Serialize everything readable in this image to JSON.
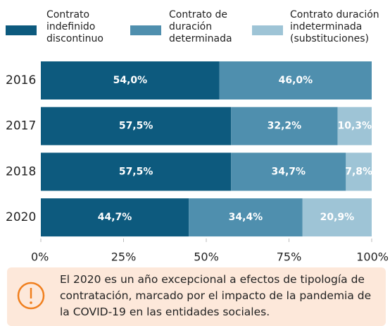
{
  "chart_data": {
    "type": "stacked_barh",
    "categories": [
      "2016",
      "2017",
      "2018",
      "2020"
    ],
    "series": [
      {
        "name": "Contrato indefinido discontinuo",
        "color": "#0d5a7e",
        "values": [
          54.0,
          57.5,
          57.5,
          44.7
        ],
        "value_labels": [
          "54,0%",
          "57,5%",
          "57,5%",
          "44,7%"
        ]
      },
      {
        "name": "Contrato de duración determinada",
        "color": "#4f8fae",
        "values": [
          46.0,
          32.2,
          34.7,
          34.4
        ],
        "value_labels": [
          "46,0%",
          "32,2%",
          "34,7%",
          "34,4%"
        ]
      },
      {
        "name": "Contrato duración indeterminada (substituciones)",
        "color": "#9ec4d6",
        "values": [
          null,
          10.3,
          7.8,
          20.9
        ],
        "value_labels": [
          null,
          "10,3%",
          "7,8%",
          "20,9%"
        ]
      }
    ],
    "xlim": [
      0,
      100
    ],
    "xticks": [
      {
        "value": 0,
        "label": "0%"
      },
      {
        "value": 25,
        "label": "25%"
      },
      {
        "value": 50,
        "label": "50%"
      },
      {
        "value": 75,
        "label": "75%"
      },
      {
        "value": 100,
        "label": "100%"
      }
    ],
    "legend": "top",
    "annotation": "El 2020 es un año excepcional a efectos de tipología de contratación, marcado por el impacto de la pandemia de la COVID-19 en las entidades sociales."
  }
}
